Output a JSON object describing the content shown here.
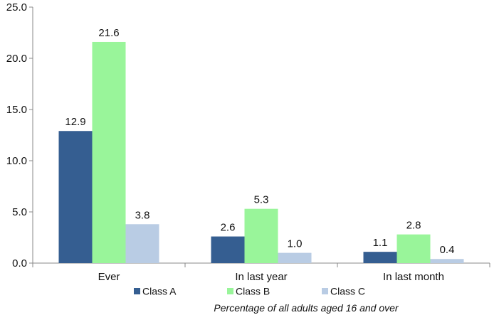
{
  "chart_data": {
    "type": "bar",
    "categories": [
      "Ever",
      "In last year",
      "In last month"
    ],
    "series": [
      {
        "name": "Class A",
        "values": [
          12.9,
          2.6,
          1.1
        ],
        "color": "#355e91",
        "labels": [
          "12.9",
          "2.6",
          "1.1"
        ]
      },
      {
        "name": "Class B",
        "values": [
          21.6,
          5.3,
          2.8
        ],
        "color": "#99f59a",
        "labels": [
          "21.6",
          "5.3",
          "2.8"
        ]
      },
      {
        "name": "Class C",
        "values": [
          3.8,
          1.0,
          0.4
        ],
        "color": "#b9cce4",
        "labels": [
          "3.8",
          "1.0",
          "0.4"
        ]
      }
    ],
    "ylim": [
      0,
      25
    ],
    "yticks": [
      "0.0",
      "5.0",
      "10.0",
      "15.0",
      "20.0",
      "25.0"
    ],
    "grid": false,
    "legend_position": "bottom",
    "caption": "Percentage of all adults aged 16 and over"
  }
}
